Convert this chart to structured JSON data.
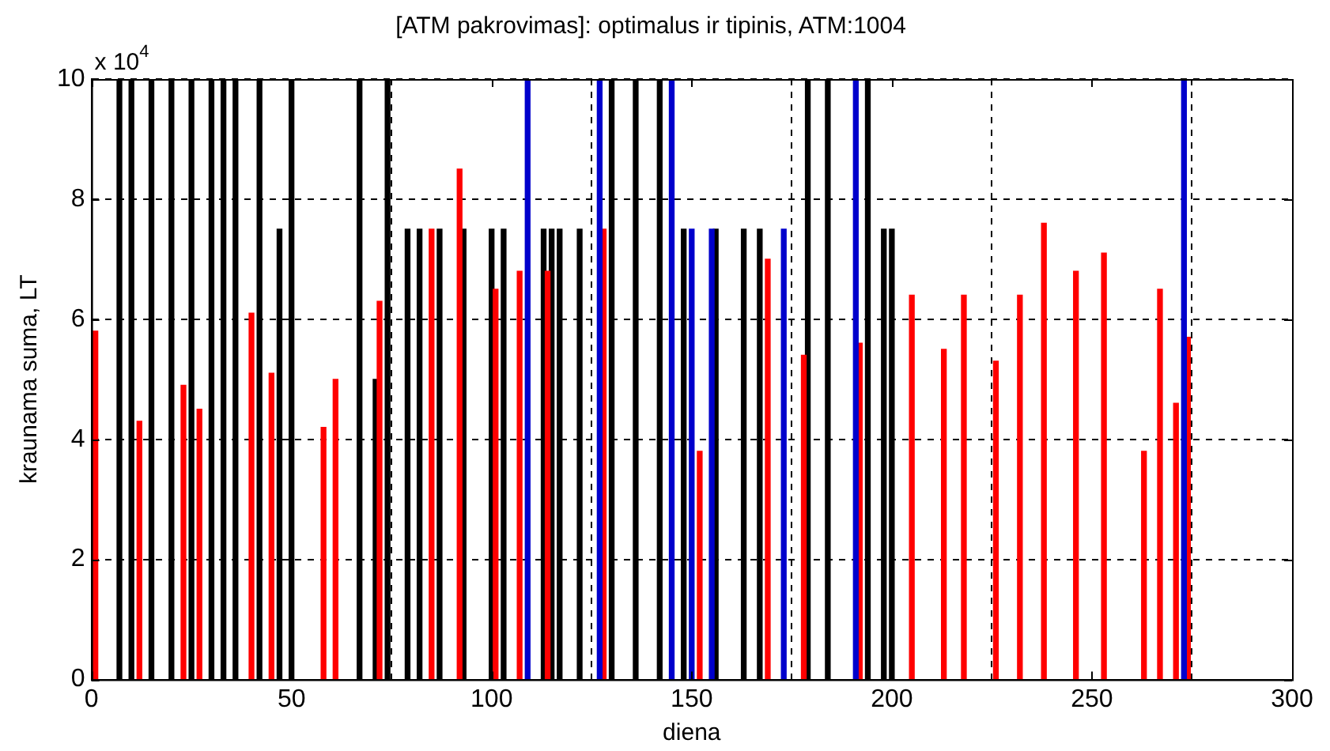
{
  "chart_data": {
    "type": "bar",
    "title": "[ATM pakrovimas]: optimalus ir tipinis, ATM:1004",
    "xlabel": "diena",
    "ylabel": "kraunama suma, LT",
    "annotations": [
      "x 10$^{4}$"
    ],
    "series": [
      {
        "color": "#000000",
        "x": [
          7,
          10,
          15,
          20,
          25,
          30,
          33,
          36,
          42,
          47,
          50,
          67,
          71,
          74,
          79,
          82,
          87,
          93,
          100,
          103,
          113,
          115,
          117,
          122,
          130,
          136,
          142,
          148,
          156,
          163,
          167,
          179,
          184,
          194,
          198,
          200
        ],
        "values": [
          10,
          10,
          10,
          10,
          10,
          10,
          10,
          10,
          10,
          7.5,
          10,
          10,
          5,
          10,
          7.5,
          7.5,
          7.5,
          7.5,
          7.5,
          7.5,
          7.5,
          7.5,
          7.5,
          7.5,
          10,
          10,
          10,
          7.5,
          7.5,
          7.5,
          7.5,
          10,
          10,
          10,
          7.5,
          7.5
        ]
      },
      {
        "color": "#ff0000",
        "x": [
          1,
          12,
          23,
          27,
          40,
          45,
          58,
          61,
          72,
          85,
          92,
          101,
          107,
          114,
          128,
          152,
          169,
          178,
          192,
          205,
          213,
          218,
          226,
          232,
          238,
          246,
          253,
          263,
          267,
          271,
          274
        ],
        "values": [
          5.8,
          4.3,
          4.9,
          4.5,
          6.1,
          5.1,
          4.2,
          5,
          6.3,
          7.5,
          8.5,
          6.5,
          6.8,
          6.8,
          7.5,
          3.8,
          7,
          5.4,
          5.6,
          6.4,
          5.5,
          6.4,
          5.3,
          6.4,
          7.6,
          6.8,
          7.1,
          3.8,
          6.5,
          4.6,
          5.7
        ]
      },
      {
        "color": "#0000cc",
        "x": [
          109,
          127,
          145,
          150,
          155,
          173,
          191,
          273
        ],
        "values": [
          10,
          10,
          10,
          7.5,
          7.5,
          7.5,
          10,
          10
        ]
      }
    ],
    "xlim": [
      0,
      300
    ],
    "xticks": [
      0,
      50,
      100,
      150,
      200,
      250,
      300
    ],
    "ylim": [
      0,
      10
    ],
    "yticks": [
      0,
      2,
      4,
      6,
      8,
      10
    ],
    "grid": true
  }
}
